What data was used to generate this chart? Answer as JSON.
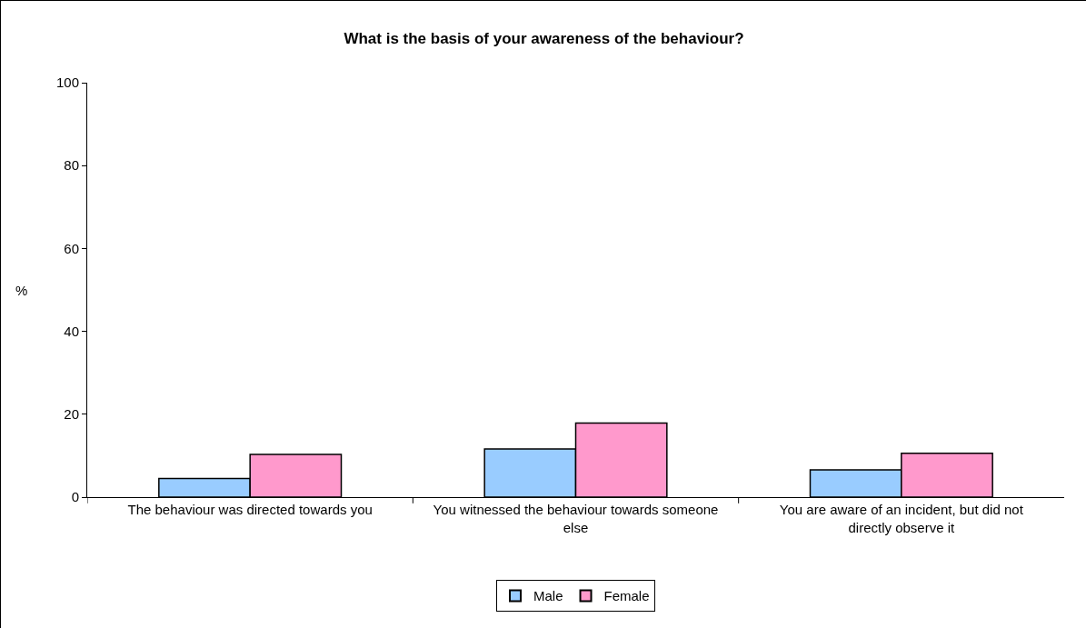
{
  "chart_data": {
    "type": "bar",
    "title": "What is the basis of your awareness of the behaviour?",
    "ylabel": "%",
    "categories": [
      "The behaviour was directed towards you",
      "You witnessed the behaviour towards someone else",
      "You are aware of an incident, but did not directly observe it"
    ],
    "series": [
      {
        "name": "Male",
        "color": "#99ccff",
        "values": [
          4.5,
          11.6,
          6.6
        ]
      },
      {
        "name": "Female",
        "color": "#ff99cc",
        "values": [
          10.3,
          17.9,
          10.6
        ]
      }
    ],
    "ylim": [
      0,
      100
    ],
    "yticks": [
      0,
      20,
      40,
      60,
      80,
      100
    ],
    "grid": false,
    "legend": "bottom"
  }
}
